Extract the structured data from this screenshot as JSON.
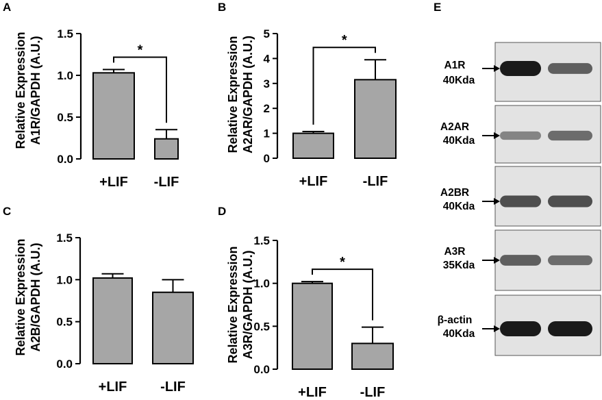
{
  "colors": {
    "bar_fill": "#a6a6a6",
    "stroke": "#000000",
    "blot_bg": "#e3e3e3",
    "band": "#1a1a1a"
  },
  "chart_data": [
    {
      "panel": "A",
      "type": "bar",
      "categories": [
        "+LIF",
        "-LIF"
      ],
      "values": [
        1.03,
        0.24
      ],
      "errors": [
        0.04,
        0.11
      ],
      "ylabel_line1": "Relative Expression",
      "ylabel_line2": "A1R/GAPDH (A.U.)",
      "ylim": [
        0,
        1.5
      ],
      "yticks": [
        0,
        0.5,
        1.0,
        1.5
      ],
      "ytick_labels": [
        "0.0",
        "0.5",
        "1.0",
        "1.5"
      ],
      "significance": "*",
      "grid": false
    },
    {
      "panel": "B",
      "type": "bar",
      "categories": [
        "+LIF",
        "-LIF"
      ],
      "values": [
        1.0,
        3.15
      ],
      "errors": [
        0.07,
        0.8
      ],
      "ylabel_line1": "Relative Expression",
      "ylabel_line2": "A2AR/GAPDH (A.U.)",
      "ylim": [
        0,
        5
      ],
      "yticks": [
        0,
        1,
        2,
        3,
        4,
        5
      ],
      "ytick_labels": [
        "0",
        "1",
        "2",
        "3",
        "4",
        "5"
      ],
      "significance": "*",
      "grid": false
    },
    {
      "panel": "C",
      "type": "bar",
      "categories": [
        "+LIF",
        "-LIF"
      ],
      "values": [
        1.02,
        0.85
      ],
      "errors": [
        0.05,
        0.15
      ],
      "ylabel_line1": "Relative Expression",
      "ylabel_line2": "A2B/GAPDH (A.U.)",
      "ylim": [
        0,
        1.5
      ],
      "yticks": [
        0,
        0.5,
        1.0,
        1.5
      ],
      "ytick_labels": [
        "0.0",
        "0.5",
        "1.0",
        "1.5"
      ],
      "significance": "",
      "grid": false
    },
    {
      "panel": "D",
      "type": "bar",
      "categories": [
        "+LIF",
        "-LIF"
      ],
      "values": [
        1.0,
        0.3
      ],
      "errors": [
        0.02,
        0.19
      ],
      "ylabel_line1": "Relative Expression",
      "ylabel_line2": "A3R/GAPDH (A.U.)",
      "ylim": [
        0,
        1.5
      ],
      "yticks": [
        0,
        0.5,
        1.0,
        1.5
      ],
      "ytick_labels": [
        "0.0",
        "0.5",
        "1.0",
        "1.5"
      ],
      "significance": "*",
      "grid": false
    }
  ],
  "western_blot": {
    "panel": "E",
    "blots": [
      {
        "name": "A1R",
        "size": "40Kda",
        "band_strength": [
          1.0,
          0.55
        ]
      },
      {
        "name": "A2AR",
        "size": "40Kda",
        "band_strength": [
          0.3,
          0.45
        ]
      },
      {
        "name": "A2BR",
        "size": "40Kda",
        "band_strength": [
          0.65,
          0.65
        ]
      },
      {
        "name": "A3R",
        "size": "35Kda",
        "band_strength": [
          0.55,
          0.45
        ]
      },
      {
        "name": "β-actin",
        "size": "40Kda",
        "band_strength": [
          1.0,
          1.0
        ]
      }
    ]
  }
}
